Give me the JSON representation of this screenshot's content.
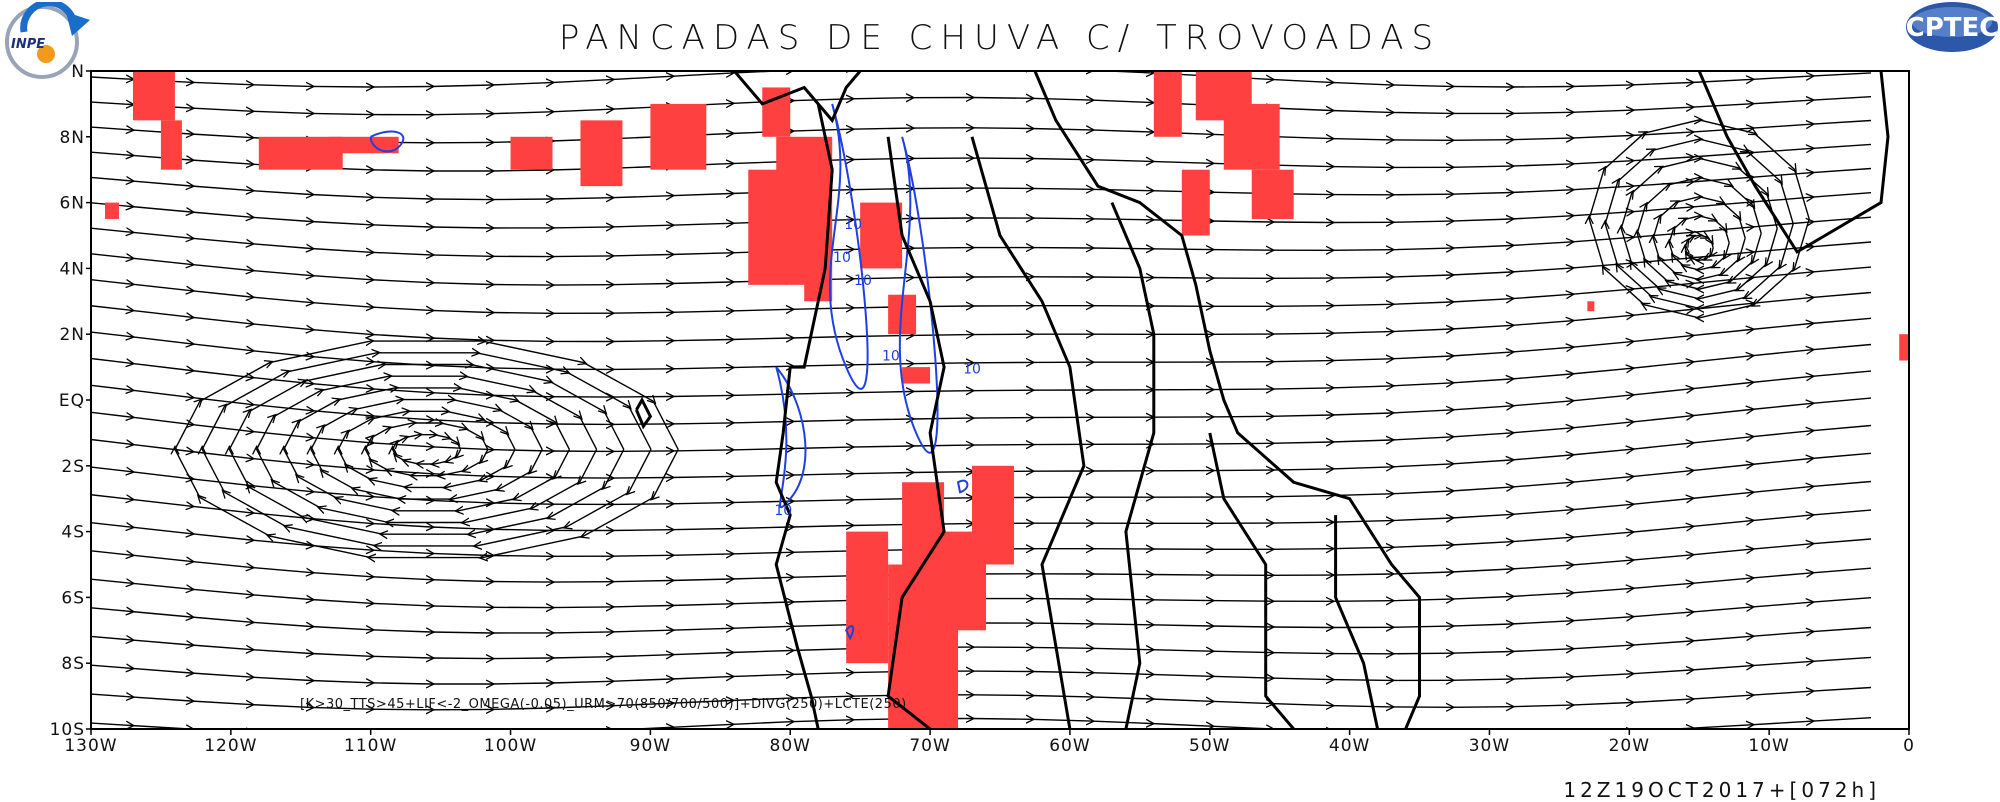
{
  "title": "PANCADAS DE CHUVA C/ TROVOADAS",
  "valid_time": "12Z19OCT2017+[072h]",
  "criteria": "[K>30_TTS>45+LIF<-2_OMEGA(-0.05)_URM>70(850/700/500)]+DIVG(250)+LCTE(250)",
  "logos": {
    "left": "INPE",
    "right": "CPTEC"
  },
  "contour_label": "10",
  "lon_ticks": [
    "130W",
    "120W",
    "110W",
    "100W",
    "90W",
    "80W",
    "70W",
    "60W",
    "50W",
    "40W",
    "30W",
    "20W",
    "10W",
    "0"
  ],
  "lat_ticks": [
    "10S",
    "8S",
    "6S",
    "4S",
    "2S",
    "EQ",
    "2N",
    "4N",
    "6N",
    "8N",
    "N"
  ],
  "map_extent": {
    "lon": [
      -130,
      0
    ],
    "lat": [
      -10,
      10
    ]
  },
  "colors": {
    "storm_area": "#ff4040",
    "omega_contour": "#1f3fe0",
    "streamline": "#000000",
    "coast": "#000000"
  }
}
